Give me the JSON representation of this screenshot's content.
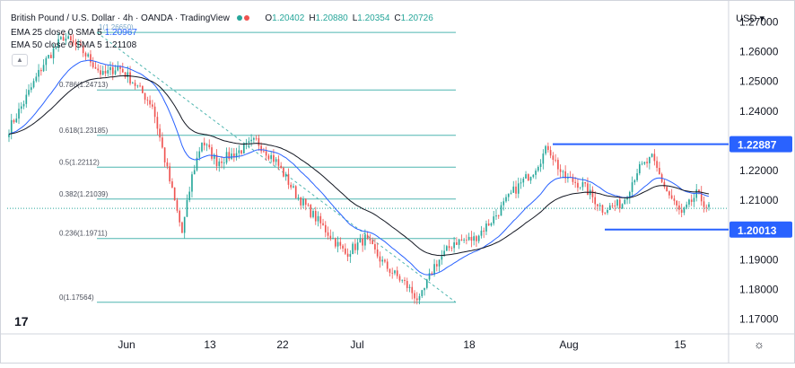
{
  "header": {
    "symbol": "British Pound / U.S. Dollar · 4h · OANDA · TradingView",
    "ohlc": [
      {
        "k": "O",
        "v": "1.20402"
      },
      {
        "k": "H",
        "v": "1.20880"
      },
      {
        "k": "L",
        "v": "1.20354"
      },
      {
        "k": "C",
        "v": "1.20726"
      }
    ],
    "ema25_label": "EMA 25 close 0 SMA 5",
    "ema25_value": "1.20967",
    "ema50_label": "EMA 50 close 0 SMA 5",
    "ema50_value": "1.21108",
    "currency": "USD"
  },
  "colors": {
    "up": "#26a69a",
    "down": "#ef5350",
    "ema25": "#2962ff",
    "ema50": "#131722",
    "fib": "#4fb6b0",
    "level": "#2962ff",
    "grid": "#e6e8ec"
  },
  "chart_data": {
    "type": "candlestick",
    "ylim": [
      1.165,
      1.275
    ],
    "y_ticks": [
      "1.27000",
      "1.26000",
      "1.25000",
      "1.24000",
      "1.23000",
      "1.22000",
      "1.21000",
      "1.20000",
      "1.19000",
      "1.18000",
      "1.17000"
    ],
    "x_ticks": [
      "Jun",
      "13",
      "22",
      "Jul",
      "18",
      "Aug",
      "15"
    ],
    "price_anchors": [
      [
        0,
        1.234
      ],
      [
        6,
        1.243
      ],
      [
        14,
        1.256
      ],
      [
        22,
        1.265
      ],
      [
        30,
        1.26
      ],
      [
        38,
        1.252
      ],
      [
        44,
        1.255
      ],
      [
        50,
        1.25
      ],
      [
        58,
        1.242
      ],
      [
        64,
        1.22
      ],
      [
        70,
        1.199
      ],
      [
        74,
        1.218
      ],
      [
        78,
        1.23
      ],
      [
        84,
        1.223
      ],
      [
        92,
        1.226
      ],
      [
        100,
        1.23
      ],
      [
        108,
        1.223
      ],
      [
        116,
        1.212
      ],
      [
        122,
        1.206
      ],
      [
        130,
        1.198
      ],
      [
        136,
        1.192
      ],
      [
        144,
        1.197
      ],
      [
        152,
        1.188
      ],
      [
        160,
        1.182
      ],
      [
        166,
        1.176
      ],
      [
        172,
        1.188
      ],
      [
        180,
        1.196
      ],
      [
        188,
        1.197
      ],
      [
        196,
        1.204
      ],
      [
        204,
        1.213
      ],
      [
        212,
        1.22
      ],
      [
        218,
        1.228
      ],
      [
        224,
        1.218
      ],
      [
        232,
        1.215
      ],
      [
        240,
        1.207
      ],
      [
        248,
        1.209
      ],
      [
        254,
        1.22
      ],
      [
        260,
        1.224
      ],
      [
        266,
        1.213
      ],
      [
        272,
        1.205
      ],
      [
        278,
        1.212
      ],
      [
        283,
        1.2073
      ]
    ],
    "fib_levels": [
      {
        "label": "0.786(1.24713)",
        "price": 1.24713
      },
      {
        "label": "0.618(1.23185)",
        "price": 1.23185
      },
      {
        "label": "0.5(1.22112)",
        "price": 1.22112
      },
      {
        "label": "0.382(1.21039)",
        "price": 1.21039
      },
      {
        "label": "0.236(1.19711)",
        "price": 1.19711
      },
      {
        "label": "0(1.17564)",
        "price": 1.17564
      }
    ],
    "fib_top_price": 1.2665,
    "fib_top_label": "1(1.26650)",
    "levels": [
      {
        "label": "1.22887",
        "price": 1.22887
      },
      {
        "label": "1.20013",
        "price": 1.20013
      }
    ],
    "current_price": 1.20726
  }
}
